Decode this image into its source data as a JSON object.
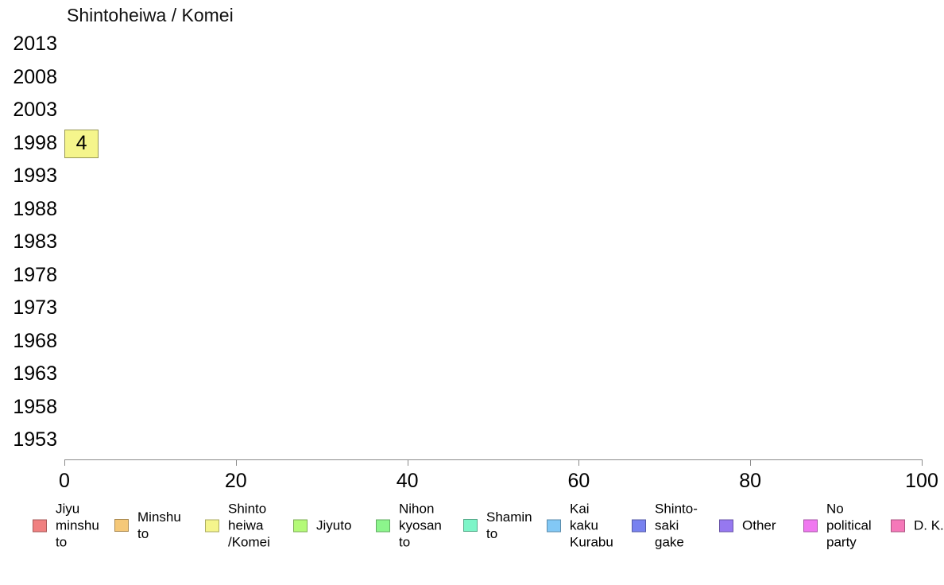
{
  "chart_data": {
    "type": "bar",
    "orientation": "horizontal",
    "title": "Shintoheiwa / Komei",
    "xlabel": "",
    "ylabel": "",
    "categories": [
      "2013",
      "2008",
      "2003",
      "1998",
      "1993",
      "1988",
      "1983",
      "1978",
      "1973",
      "1968",
      "1963",
      "1958",
      "1953"
    ],
    "values": [
      null,
      null,
      null,
      4,
      null,
      null,
      null,
      null,
      null,
      null,
      null,
      null,
      null
    ],
    "bar_labels": [
      "",
      "",
      "",
      "4",
      "",
      "",
      "",
      "",
      "",
      "",
      "",
      "",
      ""
    ],
    "bar_color": "#F5F58C",
    "xlim": [
      0,
      100
    ],
    "xticks": [
      0,
      20,
      40,
      60,
      80,
      100
    ],
    "grid": false,
    "legend_position": "bottom",
    "axis_color": "#8c8c8c",
    "legend": [
      {
        "label": "Jiyu minshu to",
        "lines": [
          "Jiyu",
          "minshu",
          "to"
        ],
        "color": "#F08080"
      },
      {
        "label": "Minshu to",
        "lines": [
          "Minshu",
          "to"
        ],
        "color": "#F5C878"
      },
      {
        "label": "Shinto heiwa /Komei",
        "lines": [
          "Shinto",
          "heiwa",
          "/Komei"
        ],
        "color": "#F5F58C"
      },
      {
        "label": "Jiyuto",
        "lines": [
          "Jiyuto"
        ],
        "color": "#B4FA78"
      },
      {
        "label": "Nihon kyosan to",
        "lines": [
          "Nihon",
          "kyosan",
          "to"
        ],
        "color": "#8CF58C"
      },
      {
        "label": "Shamin to",
        "lines": [
          "Shamin",
          "to"
        ],
        "color": "#7DF5C8"
      },
      {
        "label": "Kai kaku Kurabu",
        "lines": [
          "Kai",
          "kaku",
          "Kurabu"
        ],
        "color": "#82C8F5"
      },
      {
        "label": "Shinto-saki gake",
        "lines": [
          "Shinto-",
          "saki",
          "gake"
        ],
        "color": "#7882F0"
      },
      {
        "label": "Other",
        "lines": [
          "Other"
        ],
        "color": "#9678F0"
      },
      {
        "label": "No political party",
        "lines": [
          "No",
          "political",
          "party"
        ],
        "color": "#F078F0"
      },
      {
        "label": "D. K.",
        "lines": [
          "D. K."
        ],
        "color": "#F578B9"
      }
    ]
  }
}
